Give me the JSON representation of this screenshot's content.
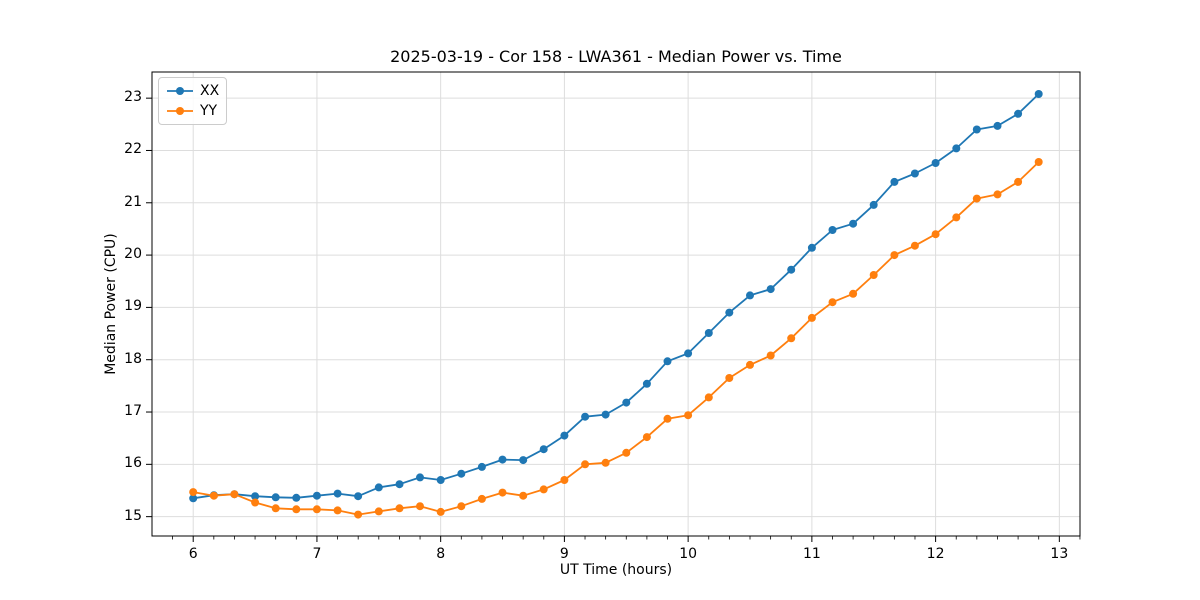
{
  "chart_data": {
    "type": "line",
    "title": "2025-03-19 - Cor 158 - LWA361 - Median Power vs. Time",
    "xlabel": "UT Time (hours)",
    "ylabel": "Median Power (CPU)",
    "xlim": [
      5.667,
      13.167
    ],
    "ylim": [
      14.63,
      23.5
    ],
    "x_ticks": [
      6,
      7,
      8,
      9,
      10,
      11,
      12,
      13
    ],
    "y_ticks": [
      15,
      16,
      17,
      18,
      19,
      20,
      21,
      22,
      23
    ],
    "x_minor_tick_interval_hours": 0.1667,
    "grid": true,
    "grid_color": "#dddddd",
    "spine_color": "#000000",
    "legend_position": "upper-left",
    "marker": "circle",
    "x": [
      6.0,
      6.167,
      6.333,
      6.5,
      6.667,
      6.833,
      7.0,
      7.167,
      7.333,
      7.5,
      7.667,
      7.833,
      8.0,
      8.167,
      8.333,
      8.5,
      8.667,
      8.833,
      9.0,
      9.167,
      9.333,
      9.5,
      9.667,
      9.833,
      10.0,
      10.167,
      10.333,
      10.5,
      10.667,
      10.833,
      11.0,
      11.167,
      11.333,
      11.5,
      11.667,
      11.833,
      12.0,
      12.167,
      12.333,
      12.5,
      12.667,
      12.833
    ],
    "series": [
      {
        "name": "XX",
        "color": "#1f77b4",
        "values": [
          15.35,
          15.41,
          15.43,
          15.39,
          15.37,
          15.36,
          15.4,
          15.44,
          15.39,
          15.56,
          15.62,
          15.75,
          15.7,
          15.82,
          15.95,
          16.09,
          16.08,
          16.29,
          16.55,
          16.91,
          16.95,
          17.18,
          17.54,
          17.97,
          18.12,
          18.51,
          18.9,
          19.23,
          19.35,
          19.72,
          20.14,
          20.48,
          20.6,
          20.96,
          21.4,
          21.56,
          21.76,
          22.04,
          22.4,
          22.47,
          22.7,
          23.08
        ]
      },
      {
        "name": "YY",
        "color": "#ff7f0e",
        "values": [
          15.47,
          15.4,
          15.43,
          15.27,
          15.16,
          15.14,
          15.14,
          15.12,
          15.04,
          15.1,
          15.16,
          15.2,
          15.09,
          15.2,
          15.34,
          15.46,
          15.4,
          15.52,
          15.7,
          16.0,
          16.03,
          16.22,
          16.52,
          16.87,
          16.94,
          17.28,
          17.65,
          17.9,
          18.08,
          18.41,
          18.8,
          19.1,
          19.26,
          19.62,
          20.0,
          20.18,
          20.4,
          20.72,
          21.08,
          21.16,
          21.4,
          21.78
        ]
      }
    ]
  }
}
